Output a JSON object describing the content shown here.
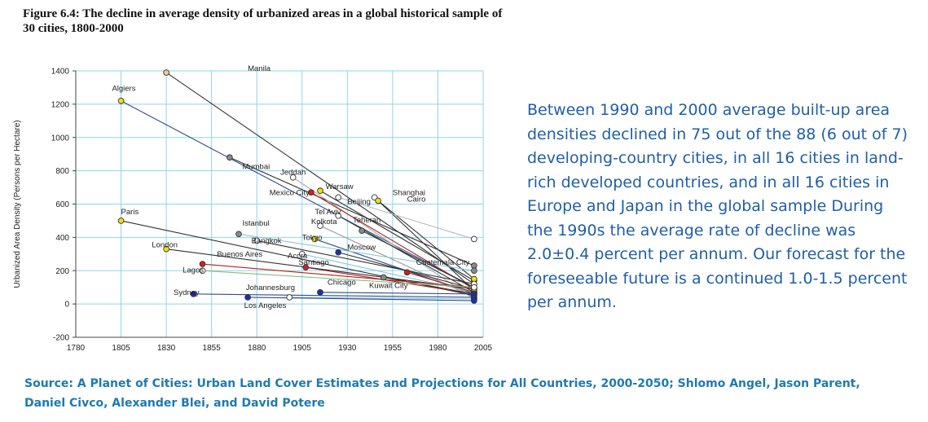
{
  "figure": {
    "title": "Figure 6.4: The decline in average density of urbanized areas in a global historical sample of 30 cities, 1800-2000"
  },
  "description": "Between 1990 and 2000 average built-up area densities declined in 75 out of the 88 (6 out of 7) developing-country cities, in all 16 cities in land-rich developed countries, and in all 16 cities in Europe and Japan in the global sample During the 1990s the average rate of decline was 2.0±0.4 percent per annum.  Our forecast for the foreseeable future is a continued 1.0-1.5 percent per annum.",
  "source": "Source: A Planet of Cities:  Urban Land Cover Estimates  and Projections for All Countries, 2000-2050; Shlomo Angel, Jason Parent, Daniel Civco, Alexander Blei, and David Potere",
  "chart_data": {
    "type": "line",
    "title": "",
    "xlabel": "",
    "ylabel": "Urbanized Area Density (Persons per Hectare)",
    "xlim": [
      1780,
      2005
    ],
    "ylim": [
      -200,
      1400
    ],
    "xticks": [
      1780,
      1805,
      1830,
      1855,
      1880,
      1905,
      1930,
      1955,
      1980,
      2005
    ],
    "yticks": [
      -200,
      0,
      200,
      400,
      600,
      800,
      1000,
      1200,
      1400
    ],
    "grid": true,
    "legend": "none",
    "series": [
      {
        "name": "Manila",
        "color": "#333333",
        "marker": "#f5c89a",
        "points": [
          [
            1830,
            1390
          ],
          [
            2000,
            120
          ]
        ]
      },
      {
        "name": "Algiers",
        "color": "#2a4d8f",
        "marker": "#f2e200",
        "points": [
          [
            1805,
            1220
          ],
          [
            2000,
            100
          ]
        ]
      },
      {
        "name": "Mumbai",
        "color": "#333333",
        "marker": "#8a8a8a",
        "points": [
          [
            1865,
            880
          ],
          [
            2000,
            230
          ]
        ]
      },
      {
        "name": "Jeddah",
        "color": "#aaaaaa",
        "marker": "#ffffff",
        "points": [
          [
            1900,
            760
          ],
          [
            2000,
            30
          ]
        ]
      },
      {
        "name": "Warsaw",
        "color": "#333333",
        "marker": "#f2e200",
        "points": [
          [
            1915,
            680
          ],
          [
            2000,
            140
          ]
        ]
      },
      {
        "name": "Mexico City",
        "color": "#b02020",
        "marker": "#d02020",
        "points": [
          [
            1910,
            670
          ],
          [
            2000,
            90
          ]
        ]
      },
      {
        "name": "Shanghai",
        "color": "#333333",
        "marker": "#ffffff",
        "points": [
          [
            1945,
            640
          ],
          [
            2000,
            80
          ]
        ]
      },
      {
        "name": "Cairo",
        "color": "#333333",
        "marker": "#f2e200",
        "points": [
          [
            1947,
            620
          ],
          [
            2000,
            150
          ]
        ]
      },
      {
        "name": "Beijing",
        "color": "#bbbbbb",
        "marker": "#ffffff",
        "points": [
          [
            1925,
            640
          ],
          [
            2000,
            390
          ]
        ]
      },
      {
        "name": "Tel Aviv",
        "color": "#333333",
        "marker": "#ffffff",
        "points": [
          [
            1925,
            530
          ],
          [
            2000,
            70
          ]
        ]
      },
      {
        "name": "Teheran",
        "color": "#333333",
        "marker": "#8a8a8a",
        "points": [
          [
            1938,
            440
          ],
          [
            2000,
            100
          ]
        ]
      },
      {
        "name": "Kolkota",
        "color": "#999999",
        "marker": "#ffffff",
        "points": [
          [
            1915,
            470
          ],
          [
            2000,
            40
          ]
        ]
      },
      {
        "name": "Tokyo",
        "color": "#2a4d8f",
        "marker": "#f2e200",
        "points": [
          [
            1912,
            390
          ],
          [
            2000,
            60
          ]
        ]
      },
      {
        "name": "Istanbul",
        "color": "#88c8d8",
        "marker": "#8a8a8a",
        "points": [
          [
            1870,
            420
          ],
          [
            2000,
            200
          ]
        ]
      },
      {
        "name": "Bangkok",
        "color": "#333333",
        "marker": "#ffffff",
        "points": [
          [
            1880,
            380
          ],
          [
            2000,
            120
          ]
        ]
      },
      {
        "name": "Paris",
        "color": "#333333",
        "marker": "#f2e200",
        "points": [
          [
            1805,
            500
          ],
          [
            2000,
            50
          ]
        ]
      },
      {
        "name": "Accra",
        "color": "#88c8d8",
        "marker": "#ffffff",
        "points": [
          [
            1905,
            300
          ],
          [
            2000,
            70
          ]
        ]
      },
      {
        "name": "Moscow",
        "color": "#333333",
        "marker": "#1a2fb0",
        "points": [
          [
            1925,
            310
          ],
          [
            2000,
            90
          ]
        ]
      },
      {
        "name": "Santiago",
        "color": "#b02020",
        "marker": "#d02020",
        "points": [
          [
            1907,
            220
          ],
          [
            2000,
            60
          ]
        ]
      },
      {
        "name": "Guatemala City",
        "color": "#333333",
        "marker": "#8a8a8a",
        "points": [
          [
            1950,
            160
          ],
          [
            2000,
            60
          ]
        ]
      },
      {
        "name": "Kuwait City",
        "color": "#b02020",
        "marker": "#d02020",
        "points": [
          [
            1963,
            190
          ],
          [
            2000,
            70
          ]
        ]
      },
      {
        "name": "London",
        "color": "#333333",
        "marker": "#f2e200",
        "points": [
          [
            1830,
            330
          ],
          [
            2000,
            90
          ]
        ]
      },
      {
        "name": "Buenos Aires",
        "color": "#b02020",
        "marker": "#d02020",
        "points": [
          [
            1850,
            240
          ],
          [
            2000,
            100
          ]
        ]
      },
      {
        "name": "Lagos",
        "color": "#7fc07f",
        "marker": "#ffffff",
        "points": [
          [
            1850,
            200
          ],
          [
            2000,
            100
          ]
        ]
      },
      {
        "name": "Chicago",
        "color": "#2a4d8f",
        "marker": "#1a2fb0",
        "points": [
          [
            1915,
            70
          ],
          [
            2000,
            60
          ]
        ]
      },
      {
        "name": "Johannesburg",
        "color": "#88c8d8",
        "marker": "#ffffff",
        "points": [
          [
            1898,
            40
          ],
          [
            2000,
            30
          ]
        ]
      },
      {
        "name": "Sydney",
        "color": "#2a4d8f",
        "marker": "#1a2fb0",
        "points": [
          [
            1845,
            60
          ],
          [
            2000,
            40
          ]
        ]
      },
      {
        "name": "Los Angeles",
        "color": "#2a4d8f",
        "marker": "#1a2fb0",
        "points": [
          [
            1875,
            40
          ],
          [
            2000,
            20
          ]
        ]
      }
    ],
    "annotations": [
      {
        "text": "Manila",
        "x": 1875,
        "y": 1400
      },
      {
        "text": "Algiers",
        "x": 1800,
        "y": 1280
      },
      {
        "text": "Mumbai",
        "x": 1872,
        "y": 810
      },
      {
        "text": "Jeddah",
        "x": 1893,
        "y": 775
      },
      {
        "text": "Warsaw",
        "x": 1918,
        "y": 690
      },
      {
        "text": "Mexico City",
        "x": 1887,
        "y": 655
      },
      {
        "text": "Shanghai",
        "x": 1955,
        "y": 655
      },
      {
        "text": "Cairo",
        "x": 1963,
        "y": 615
      },
      {
        "text": "Beijing",
        "x": 1930,
        "y": 600
      },
      {
        "text": "Tel Aviv",
        "x": 1912,
        "y": 540
      },
      {
        "text": "Kolkota",
        "x": 1910,
        "y": 480
      },
      {
        "text": "Teheran",
        "x": 1933,
        "y": 490
      },
      {
        "text": "Istanbul",
        "x": 1872,
        "y": 470
      },
      {
        "text": "Paris",
        "x": 1805,
        "y": 540
      },
      {
        "text": "Tokyo",
        "x": 1905,
        "y": 385
      },
      {
        "text": "Bangkok",
        "x": 1877,
        "y": 365
      },
      {
        "text": "London",
        "x": 1822,
        "y": 340
      },
      {
        "text": "Moscow",
        "x": 1930,
        "y": 325
      },
      {
        "text": "Accra",
        "x": 1897,
        "y": 275
      },
      {
        "text": "Buenos Aires",
        "x": 1858,
        "y": 285
      },
      {
        "text": "Santiago",
        "x": 1903,
        "y": 235
      },
      {
        "text": "Guatemala City",
        "x": 1968,
        "y": 235
      },
      {
        "text": "Lagos",
        "x": 1839,
        "y": 190
      },
      {
        "text": "Chicago",
        "x": 1919,
        "y": 115
      },
      {
        "text": "Kuwait City",
        "x": 1942,
        "y": 95
      },
      {
        "text": "Johannesburg",
        "x": 1874,
        "y": 85
      },
      {
        "text": "Sydney",
        "x": 1834,
        "y": 55
      },
      {
        "text": "Los Angeles",
        "x": 1873,
        "y": -25
      }
    ]
  }
}
